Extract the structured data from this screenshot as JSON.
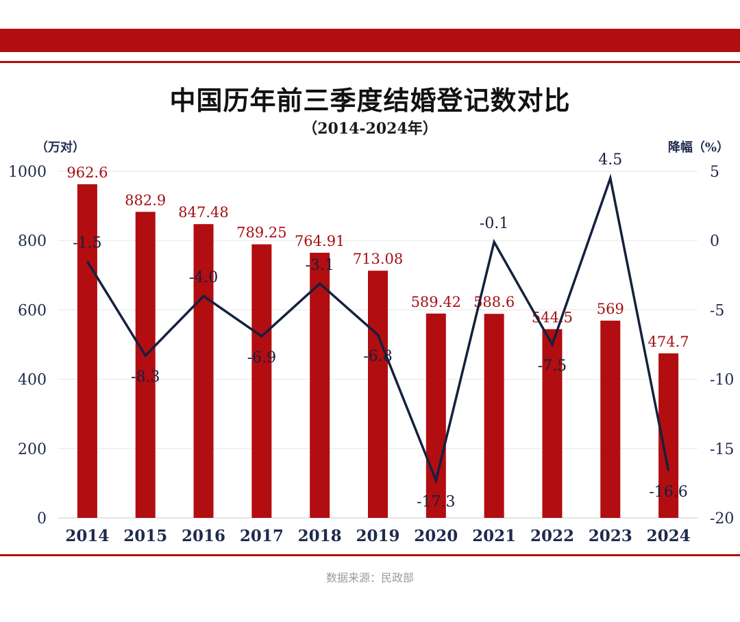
{
  "header": {
    "title": "中国历年前三季度结婚登记数对比",
    "subtitle": "（2014-2024年）"
  },
  "footer": {
    "source": "数据来源：民政部"
  },
  "colors": {
    "bar": "#b20d11",
    "line": "#14213d",
    "bar_label": "#a50e12",
    "axis_text": "#1f2a4d"
  },
  "chart_data": {
    "type": "bar",
    "categories": [
      "2014",
      "2015",
      "2016",
      "2017",
      "2018",
      "2019",
      "2020",
      "2021",
      "2022",
      "2023",
      "2024"
    ],
    "bar_labels": [
      "962.6",
      "882.9",
      "847.48",
      "789.25",
      "764.91",
      "713.08",
      "589.42",
      "588.6",
      "544.5",
      "569",
      "474.7"
    ],
    "line_labels": [
      "-1.5",
      "-8.3",
      "-4.0",
      "-6.9",
      "-3.1",
      "-6.8",
      "-17.3",
      "-0.1",
      "-7.5",
      "4.5",
      "-16.6"
    ],
    "series": [
      {
        "name": "结婚登记数（万对）",
        "type": "bar",
        "axis": "left",
        "values": [
          962.6,
          882.9,
          847.48,
          789.25,
          764.91,
          713.08,
          589.42,
          588.6,
          544.5,
          569,
          474.7
        ]
      },
      {
        "name": "降幅（%）",
        "type": "line",
        "axis": "right",
        "values": [
          -1.5,
          -8.3,
          -4.0,
          -6.9,
          -3.1,
          -6.8,
          -17.3,
          -0.1,
          -7.5,
          4.5,
          -16.6
        ]
      }
    ],
    "y_left": {
      "label": "（万对）",
      "min": 0,
      "max": 1000,
      "ticks": [
        "0",
        "200",
        "400",
        "600",
        "800",
        "1000"
      ]
    },
    "y_right": {
      "label": "降幅（%）",
      "min": -20,
      "max": 5,
      "ticks": [
        "-20",
        "-15",
        "-10",
        "-5",
        "0",
        "5"
      ]
    },
    "grid": true
  }
}
